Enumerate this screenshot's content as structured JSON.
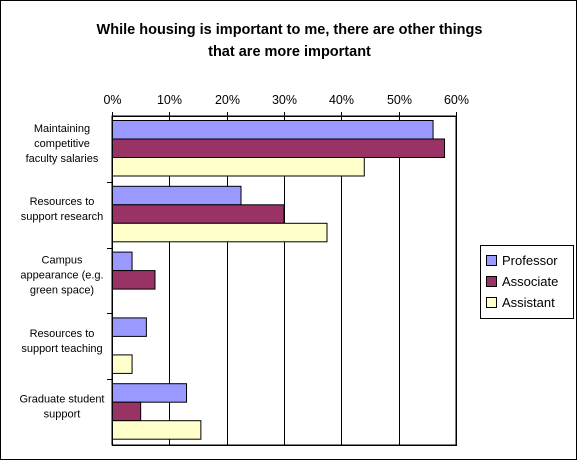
{
  "chart_data": {
    "type": "bar",
    "orientation": "horizontal",
    "title": [
      "While housing is important to me, there are other things",
      "that are more important"
    ],
    "xlabel": "",
    "ylabel": "",
    "xlim": [
      0,
      0.6
    ],
    "ticks": [
      "0%",
      "10%",
      "20%",
      "30%",
      "40%",
      "50%",
      "60%"
    ],
    "tick_values": [
      0,
      0.1,
      0.2,
      0.3,
      0.4,
      0.5,
      0.6
    ],
    "grid": true,
    "legend_position": "right",
    "categories": [
      [
        "Maintaining",
        "competitive",
        "faculty salaries"
      ],
      [
        "Resources to",
        "support research"
      ],
      [
        "Campus",
        "appearance (e.g.",
        "green space)"
      ],
      [
        "Resources to",
        "support teaching"
      ],
      [
        "Graduate student",
        "support"
      ]
    ],
    "series": [
      {
        "name": "Professor",
        "color": "#9999ff",
        "values": [
          0.56,
          0.225,
          0.035,
          0.06,
          0.13
        ]
      },
      {
        "name": "Associate",
        "color": "#993366",
        "values": [
          0.58,
          0.3,
          0.075,
          0,
          0.05
        ]
      },
      {
        "name": "Assistant",
        "color": "#ffffcc",
        "values": [
          0.44,
          0.375,
          0,
          0.035,
          0.155
        ]
      }
    ]
  }
}
